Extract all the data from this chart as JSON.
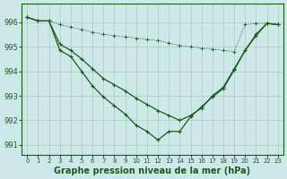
{
  "background_color": "#cde8e8",
  "grid_color": "#aaccbb",
  "line_color": "#1a5c1a",
  "xlabel": "Graphe pression niveau de la mer (hPa)",
  "xlabel_fontsize": 7,
  "ylim": [
    990.6,
    996.75
  ],
  "xlim": [
    -0.5,
    23.5
  ],
  "yticks": [
    991,
    992,
    993,
    994,
    995,
    996
  ],
  "xticks": [
    0,
    1,
    2,
    3,
    4,
    5,
    6,
    7,
    8,
    9,
    10,
    11,
    12,
    13,
    14,
    15,
    16,
    17,
    18,
    19,
    20,
    21,
    22,
    23
  ],
  "line1_x": [
    0,
    1,
    2,
    3,
    4,
    5,
    6,
    7,
    8,
    9,
    10,
    11,
    12,
    13,
    14,
    15,
    16,
    17,
    18,
    19,
    20,
    21,
    22,
    23
  ],
  "line1_y": [
    996.2,
    996.05,
    996.05,
    995.9,
    995.8,
    995.7,
    995.6,
    995.5,
    995.45,
    995.4,
    995.35,
    995.3,
    995.25,
    995.15,
    995.05,
    995.0,
    994.95,
    994.9,
    994.85,
    994.8,
    995.9,
    995.95,
    995.95,
    995.9
  ],
  "line2_x": [
    0,
    1,
    2,
    3,
    4,
    5,
    6,
    7,
    8,
    9,
    10,
    11,
    12,
    13,
    14,
    15,
    16,
    17,
    18,
    19,
    20,
    21,
    22,
    23
  ],
  "line2_y": [
    996.2,
    996.05,
    996.05,
    995.1,
    994.85,
    994.5,
    994.1,
    993.7,
    993.45,
    993.2,
    992.9,
    992.65,
    992.4,
    992.2,
    992.0,
    992.2,
    992.5,
    993.0,
    993.35,
    994.1,
    994.85,
    995.5,
    995.95,
    995.9
  ],
  "line3_x": [
    0,
    1,
    2,
    3,
    4,
    5,
    6,
    7,
    8,
    9,
    10,
    11,
    12,
    13,
    14,
    15,
    16,
    17,
    18,
    19,
    20,
    21,
    22,
    23
  ],
  "line3_y": [
    996.2,
    996.05,
    996.05,
    994.85,
    994.6,
    994.0,
    993.4,
    992.95,
    992.6,
    992.25,
    991.8,
    991.55,
    991.2,
    991.55,
    991.55,
    992.15,
    992.55,
    992.95,
    993.3,
    994.05,
    994.85,
    995.45,
    995.95,
    995.9
  ]
}
